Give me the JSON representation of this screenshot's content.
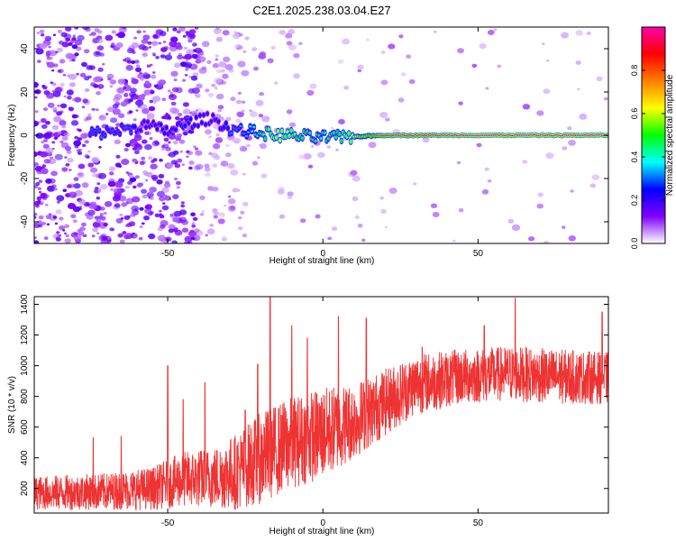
{
  "title": "C2E1.2025.238.03.04.E27",
  "chart_data": [
    {
      "type": "heatmap",
      "xlabel": "Height of straight line (km)",
      "ylabel": "Frequency (Hz)",
      "xlim": [
        -93,
        92
      ],
      "ylim": [
        -50,
        50
      ],
      "xticks": [
        -50,
        0,
        50
      ],
      "yticks": [
        -40,
        -20,
        0,
        20,
        40
      ],
      "colorbar": {
        "label": "Normalized spectral amplitude",
        "range": [
          0.0,
          1.0
        ],
        "ticks": [
          "0.0",
          "0.2",
          "0.4",
          "0.6",
          "0.8"
        ],
        "colors": [
          "#ffffff",
          "#7f00ff",
          "#0000ff",
          "#00ffff",
          "#00ff00",
          "#ffff00",
          "#ff7f00",
          "#ff0000",
          "#ff00aa"
        ]
      },
      "ridge": [
        {
          "x": -72,
          "freq": 1,
          "amp": 0.3
        },
        {
          "x": -62,
          "freq": 3,
          "amp": 0.3
        },
        {
          "x": -58,
          "freq": 5,
          "amp": 0.2
        },
        {
          "x": -50,
          "freq": 2,
          "amp": 0.25
        },
        {
          "x": -42,
          "freq": 6,
          "amp": 0.25
        },
        {
          "x": -36,
          "freq": 8,
          "amp": 0.2
        },
        {
          "x": -30,
          "freq": 3,
          "amp": 0.3
        },
        {
          "x": -25,
          "freq": 2,
          "amp": 0.35
        },
        {
          "x": -15,
          "freq": 0,
          "amp": 0.6
        },
        {
          "x": -10,
          "freq": 0,
          "amp": 0.55
        },
        {
          "x": -3,
          "freq": -1,
          "amp": 0.45
        },
        {
          "x": 5,
          "freq": -1,
          "amp": 0.5
        },
        {
          "x": 20,
          "freq": 0,
          "amp": 0.9
        },
        {
          "x": 50,
          "freq": 0,
          "amp": 0.95
        },
        {
          "x": 92,
          "freq": 0,
          "amp": 0.95
        }
      ]
    },
    {
      "type": "line",
      "xlabel": "Height of straight line (km)",
      "ylabel": "SNR (10 * v/v)",
      "xlim": [
        -93,
        92
      ],
      "ylim": [
        40,
        1450
      ],
      "xticks": [
        -50,
        0,
        50
      ],
      "yticks": [
        200,
        400,
        600,
        800,
        1000,
        1200,
        1400
      ],
      "color": "#ee3333",
      "envelope": [
        {
          "x": -93,
          "mean": 170,
          "amp": 110
        },
        {
          "x": -70,
          "mean": 180,
          "amp": 120
        },
        {
          "x": -55,
          "mean": 200,
          "amp": 140
        },
        {
          "x": -45,
          "mean": 260,
          "amp": 180
        },
        {
          "x": -35,
          "mean": 270,
          "amp": 200
        },
        {
          "x": -28,
          "mean": 310,
          "amp": 250
        },
        {
          "x": -20,
          "mean": 400,
          "amp": 300
        },
        {
          "x": -10,
          "mean": 500,
          "amp": 300
        },
        {
          "x": 0,
          "mean": 560,
          "amp": 300
        },
        {
          "x": 10,
          "mean": 640,
          "amp": 250
        },
        {
          "x": 20,
          "mean": 760,
          "amp": 220
        },
        {
          "x": 30,
          "mean": 880,
          "amp": 200
        },
        {
          "x": 45,
          "mean": 930,
          "amp": 180
        },
        {
          "x": 60,
          "mean": 950,
          "amp": 180
        },
        {
          "x": 75,
          "mean": 930,
          "amp": 180
        },
        {
          "x": 92,
          "mean": 920,
          "amp": 170
        }
      ],
      "spikes": [
        {
          "x": -74,
          "y": 530
        },
        {
          "x": -65,
          "y": 540
        },
        {
          "x": -50,
          "y": 1000
        },
        {
          "x": -45,
          "y": 780
        },
        {
          "x": -38,
          "y": 890
        },
        {
          "x": -25,
          "y": 710
        },
        {
          "x": -21,
          "y": 1010
        },
        {
          "x": -17,
          "y": 1450
        },
        {
          "x": -10,
          "y": 1260
        },
        {
          "x": -5,
          "y": 1180
        },
        {
          "x": 5,
          "y": 1320
        },
        {
          "x": 14,
          "y": 1310
        },
        {
          "x": 32,
          "y": 1120
        },
        {
          "x": 52,
          "y": 1260
        },
        {
          "x": 62,
          "y": 1440
        },
        {
          "x": 90,
          "y": 1350
        }
      ]
    }
  ]
}
